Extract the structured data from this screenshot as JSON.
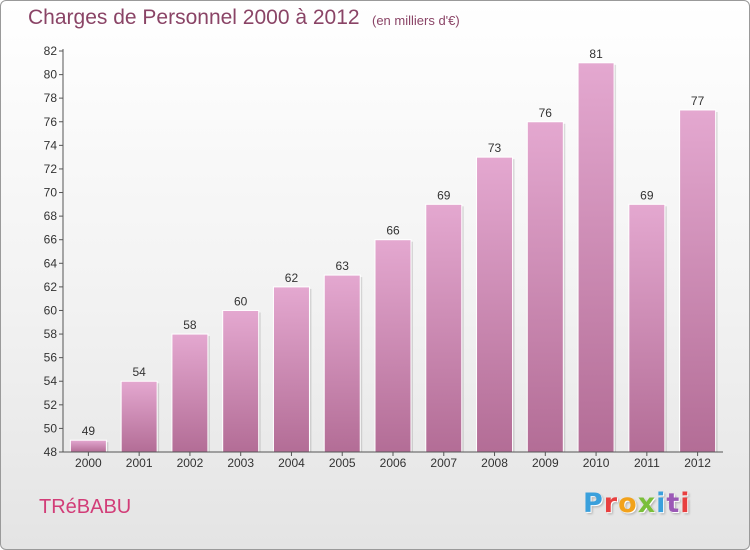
{
  "header": {
    "title": "Charges de Personnel 2000 à 2012",
    "subtitle": "(en milliers d'€)"
  },
  "footer": {
    "commune": "TRéBABU",
    "brand": "Proxiti",
    "brand_colors": [
      "#3aa0dc",
      "#e83f3f",
      "#f2a21b",
      "#7bbf3a",
      "#3aa0dc",
      "#9b59b6",
      "#e83f3f"
    ]
  },
  "colors": {
    "title": "#8a4466",
    "commune": "#d23d78",
    "bar_top": "#e4a8d0",
    "bar_bottom": "#b36d96",
    "bar_border": "#ffffff",
    "text": "#333333"
  },
  "chart_data": {
    "type": "bar",
    "title": "Charges de Personnel 2000 à 2012",
    "subtitle": "(en milliers d'€)",
    "categories": [
      "2000",
      "2001",
      "2002",
      "2003",
      "2004",
      "2005",
      "2006",
      "2007",
      "2008",
      "2009",
      "2010",
      "2011",
      "2012"
    ],
    "values": [
      49,
      54,
      58,
      60,
      62,
      63,
      66,
      69,
      73,
      76,
      81,
      69,
      77
    ],
    "xlabel": "",
    "ylabel": "",
    "ylim": [
      48,
      82
    ],
    "yticks": [
      48,
      50,
      52,
      54,
      56,
      58,
      60,
      62,
      64,
      66,
      68,
      70,
      72,
      74,
      76,
      78,
      80,
      82
    ],
    "grid": false,
    "data_labels": true
  }
}
